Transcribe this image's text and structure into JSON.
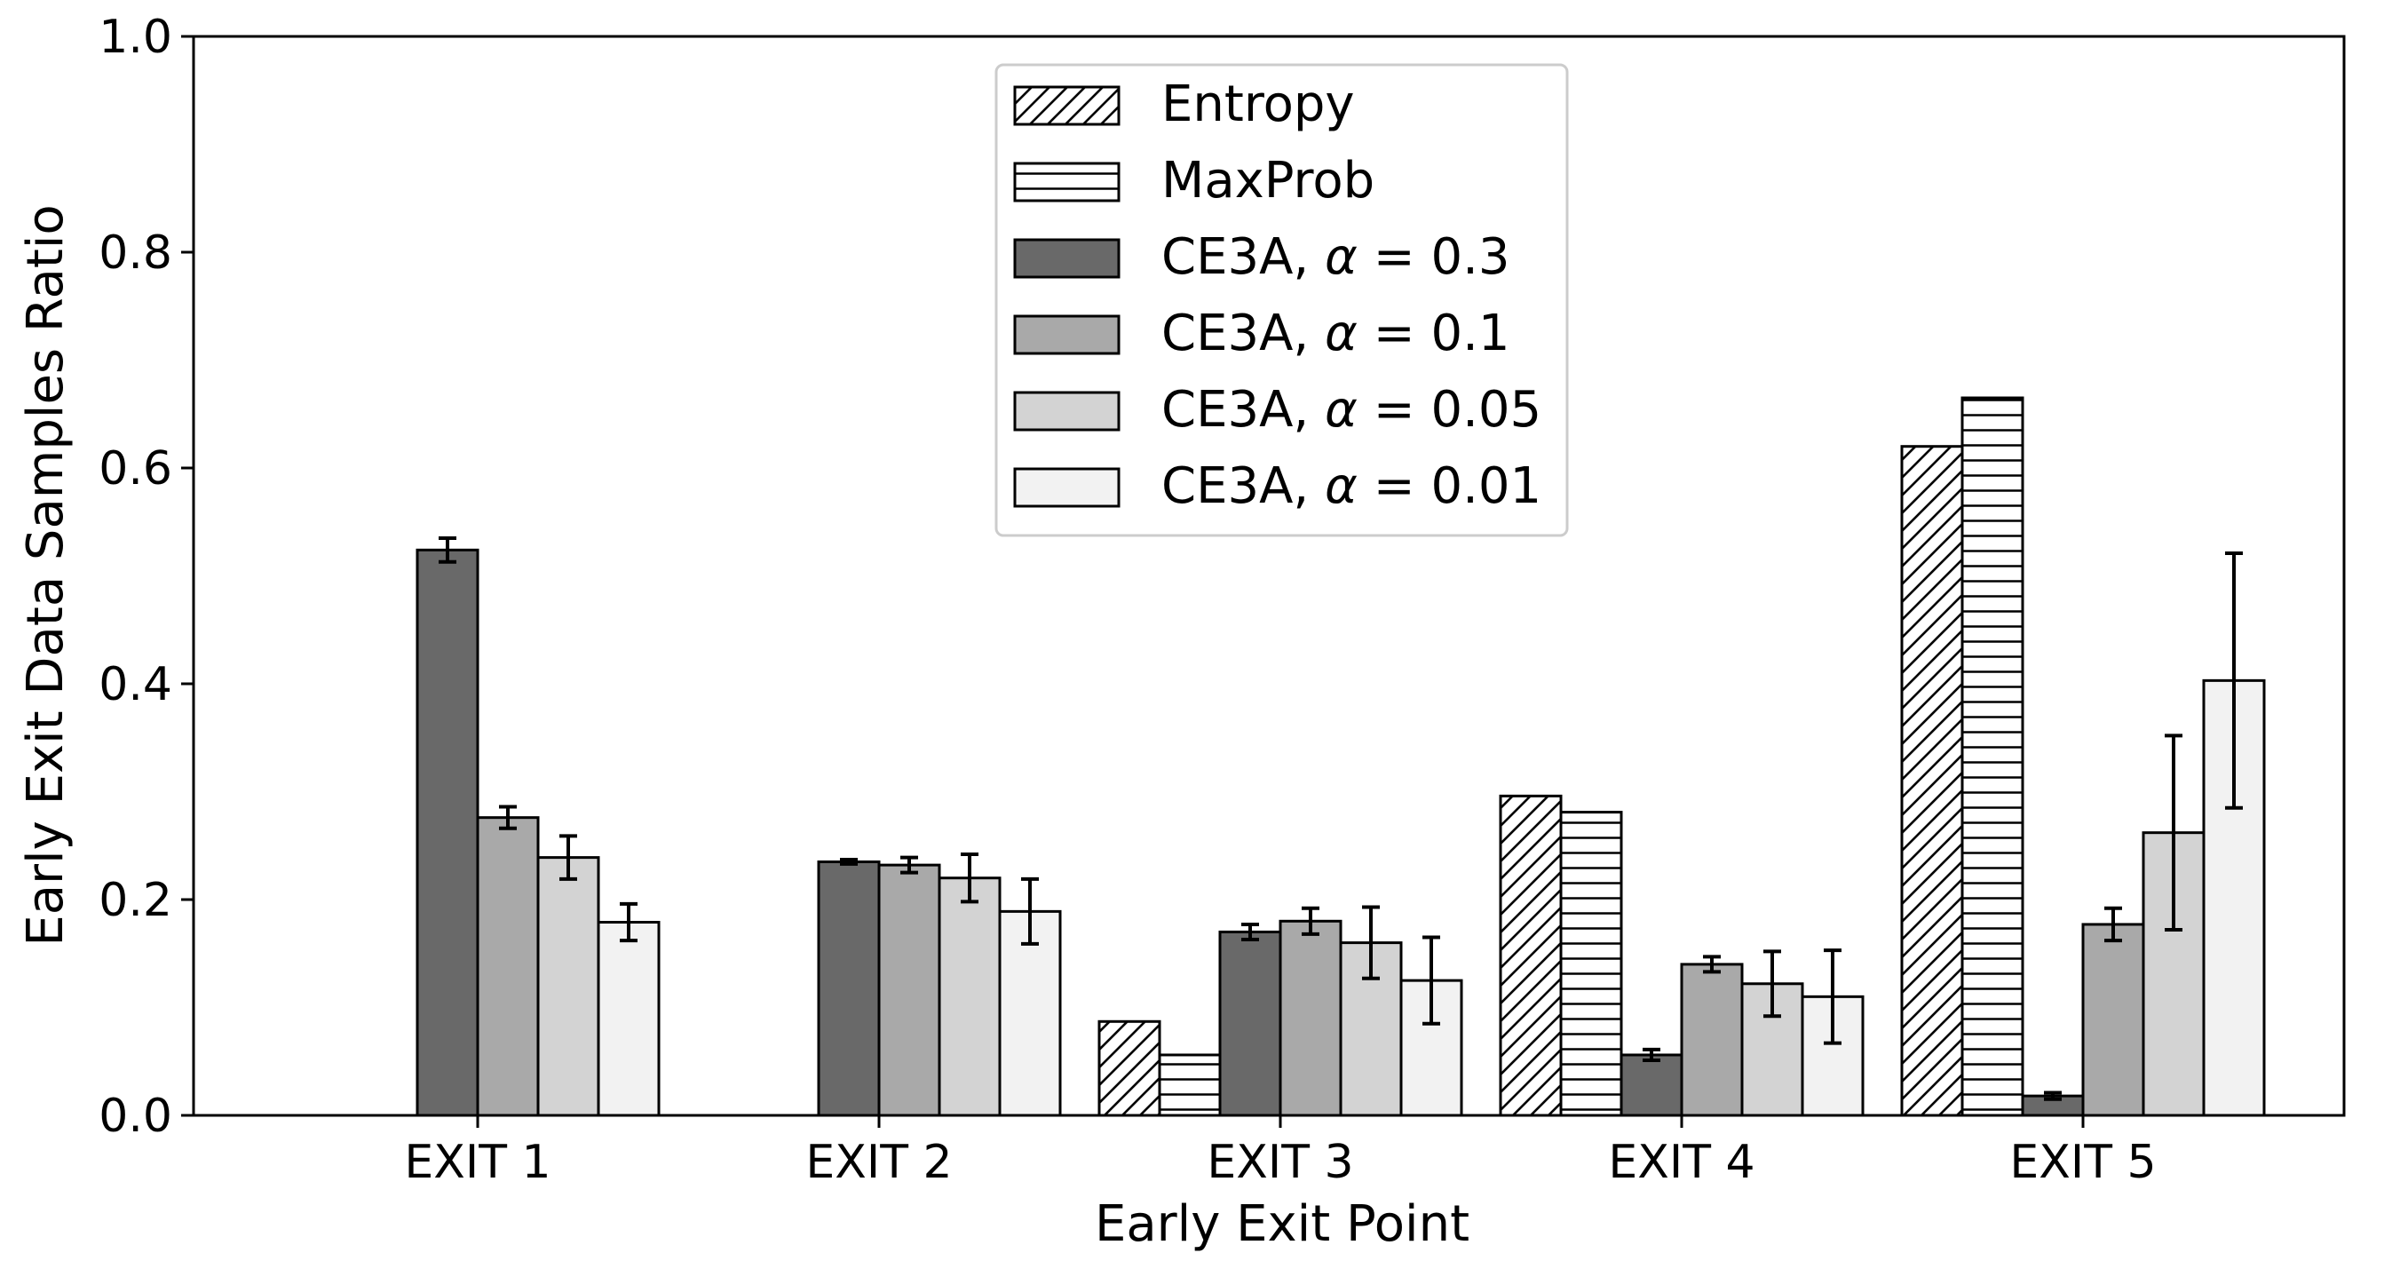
{
  "chart_data": {
    "type": "bar",
    "title": "",
    "xlabel": "Early Exit Point",
    "ylabel": "Early Exit Data Samples Ratio",
    "ylim": [
      0,
      1.0
    ],
    "yticks": [
      "0.0",
      "0.2",
      "0.4",
      "0.6",
      "0.8",
      "1.0"
    ],
    "categories": [
      "EXIT 1",
      "EXIT 2",
      "EXIT 3",
      "EXIT 4",
      "EXIT 5"
    ],
    "legend_position": "top-center",
    "series": [
      {
        "name": "Entropy",
        "legend_prefix": "",
        "alpha_value": "",
        "color": "#ffffff",
        "pattern": "diagonal",
        "values": [
          0.0,
          0.0,
          0.087,
          0.296,
          0.62
        ],
        "errors": [
          null,
          null,
          null,
          null,
          null
        ]
      },
      {
        "name": "MaxProb",
        "legend_prefix": "",
        "alpha_value": "",
        "color": "#ffffff",
        "pattern": "horizontal",
        "values": [
          0.0,
          0.0,
          0.056,
          0.281,
          0.665
        ],
        "errors": [
          null,
          null,
          null,
          null,
          null
        ]
      },
      {
        "name": "CE3A, α = 0.3",
        "legend_prefix": "CE3A, ",
        "alpha_value": "0.3",
        "color": "#696969",
        "pattern": "solid",
        "values": [
          0.524,
          0.235,
          0.17,
          0.056,
          0.018
        ],
        "errors": [
          0.011,
          0.002,
          0.007,
          0.005,
          0.003
        ]
      },
      {
        "name": "CE3A, α = 0.1",
        "legend_prefix": "CE3A, ",
        "alpha_value": "0.1",
        "color": "#a9a9a9",
        "pattern": "solid",
        "values": [
          0.276,
          0.232,
          0.18,
          0.14,
          0.177
        ],
        "errors": [
          0.01,
          0.007,
          0.012,
          0.007,
          0.015
        ]
      },
      {
        "name": "CE3A, α = 0.05",
        "legend_prefix": "CE3A, ",
        "alpha_value": "0.05",
        "color": "#d3d3d3",
        "pattern": "solid",
        "values": [
          0.239,
          0.22,
          0.16,
          0.122,
          0.262
        ],
        "errors": [
          0.02,
          0.022,
          0.033,
          0.03,
          0.09
        ]
      },
      {
        "name": "CE3A, α = 0.01",
        "legend_prefix": "CE3A, ",
        "alpha_value": "0.01",
        "color": "#f2f2f2",
        "pattern": "solid",
        "values": [
          0.179,
          0.189,
          0.125,
          0.11,
          0.403
        ],
        "errors": [
          0.017,
          0.03,
          0.04,
          0.043,
          0.118
        ]
      }
    ]
  }
}
